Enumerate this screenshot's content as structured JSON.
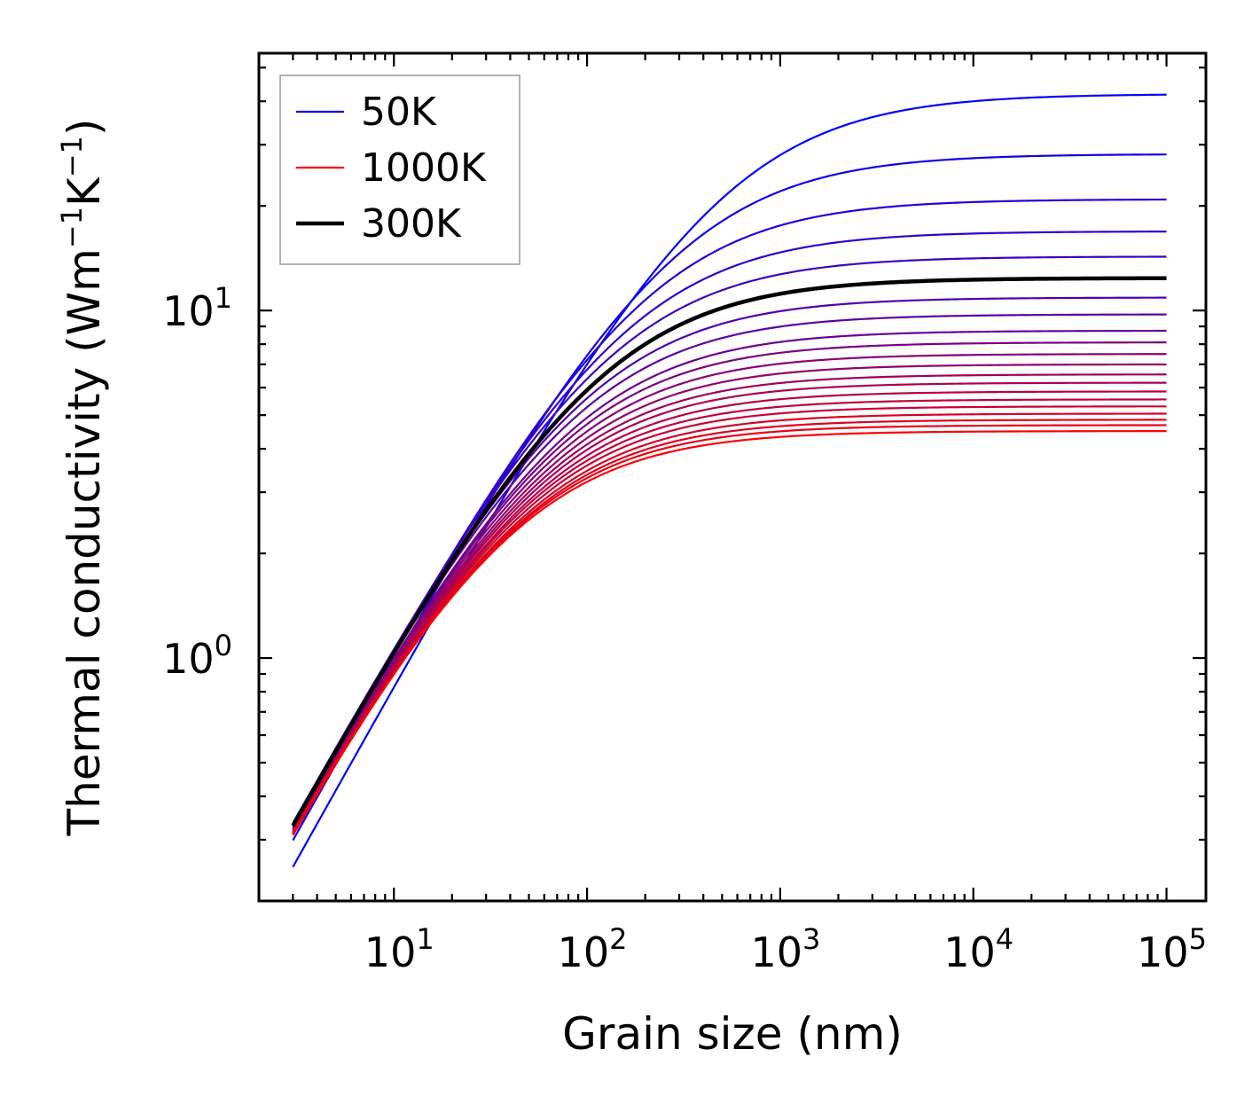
{
  "chart_data": {
    "type": "line",
    "xscale": "log",
    "yscale": "log",
    "xlabel": "Grain size (nm)",
    "ylabel": {
      "prefix": "Thermal conductivity (Wm",
      "mid": "K",
      "exp": "−1",
      "suffix": ")"
    },
    "xlim": [
      2.0,
      160000
    ],
    "ylim": [
      0.2,
      55
    ],
    "x_ticks": [
      {
        "base": "10",
        "exp": "1",
        "value": 10
      },
      {
        "base": "10",
        "exp": "2",
        "value": 100
      },
      {
        "base": "10",
        "exp": "3",
        "value": 1000
      },
      {
        "base": "10",
        "exp": "4",
        "value": 10000
      },
      {
        "base": "10",
        "exp": "5",
        "value": 100000
      }
    ],
    "y_ticks": [
      {
        "base": "10",
        "exp": "0",
        "value": 1
      },
      {
        "base": "10",
        "exp": "1",
        "value": 10
      }
    ],
    "x_range": [
      3,
      100000
    ],
    "series_model": "kappa(L) = kappa_bulk * L / (L + L0)",
    "series": [
      {
        "name": "50K",
        "kappa_bulk": 42.0,
        "L0": 500,
        "color": "#0000ff",
        "width": "thin",
        "legend": true
      },
      {
        "name": "",
        "kappa_bulk": 28.2,
        "L0": 280,
        "color": "#1200ed",
        "width": "thin",
        "legend": false
      },
      {
        "name": "",
        "kappa_bulk": 20.9,
        "L0": 190,
        "color": "#2200dd",
        "width": "thin",
        "legend": false
      },
      {
        "name": "",
        "kappa_bulk": 16.9,
        "L0": 150,
        "color": "#3100ce",
        "width": "thin",
        "legend": false
      },
      {
        "name": "",
        "kappa_bulk": 14.3,
        "L0": 125,
        "color": "#4000bf",
        "width": "thin",
        "legend": false
      },
      {
        "name": "",
        "kappa_bulk": 10.9,
        "L0": 95,
        "color": "#5000af",
        "width": "thin",
        "legend": false
      },
      {
        "name": "",
        "kappa_bulk": 9.75,
        "L0": 85,
        "color": "#5e00a1",
        "width": "thin",
        "legend": false
      },
      {
        "name": "",
        "kappa_bulk": 8.75,
        "L0": 78,
        "color": "#6c0093",
        "width": "thin",
        "legend": false
      },
      {
        "name": "",
        "kappa_bulk": 8.1,
        "L0": 72,
        "color": "#7a0085",
        "width": "thin",
        "legend": false
      },
      {
        "name": "",
        "kappa_bulk": 7.5,
        "L0": 67,
        "color": "#870078",
        "width": "thin",
        "legend": false
      },
      {
        "name": "",
        "kappa_bulk": 7.0,
        "L0": 63,
        "color": "#94006b",
        "width": "thin",
        "legend": false
      },
      {
        "name": "",
        "kappa_bulk": 6.55,
        "L0": 59,
        "color": "#a0005f",
        "width": "thin",
        "legend": false
      },
      {
        "name": "",
        "kappa_bulk": 6.2,
        "L0": 56,
        "color": "#ac0053",
        "width": "thin",
        "legend": false
      },
      {
        "name": "",
        "kappa_bulk": 5.85,
        "L0": 53,
        "color": "#b80047",
        "width": "thin",
        "legend": false
      },
      {
        "name": "",
        "kappa_bulk": 5.55,
        "L0": 50,
        "color": "#c3003c",
        "width": "thin",
        "legend": false
      },
      {
        "name": "",
        "kappa_bulk": 5.3,
        "L0": 48,
        "color": "#cd0032",
        "width": "thin",
        "legend": false
      },
      {
        "name": "",
        "kappa_bulk": 5.05,
        "L0": 46,
        "color": "#d70028",
        "width": "thin",
        "legend": false
      },
      {
        "name": "",
        "kappa_bulk": 4.85,
        "L0": 44,
        "color": "#e1001e",
        "width": "thin",
        "legend": false
      },
      {
        "name": "",
        "kappa_bulk": 4.68,
        "L0": 42,
        "color": "#eb0014",
        "width": "thin",
        "legend": false
      },
      {
        "name": "1000K",
        "kappa_bulk": 4.5,
        "L0": 40,
        "color": "#ff0000",
        "width": "thin",
        "legend": true
      },
      {
        "name": "300K",
        "kappa_bulk": 12.4,
        "L0": 110,
        "color": "#000000",
        "width": "thick",
        "legend": true
      }
    ],
    "legend": {
      "placement": "upper-left",
      "order": [
        "50K",
        "1000K",
        "300K"
      ]
    }
  }
}
